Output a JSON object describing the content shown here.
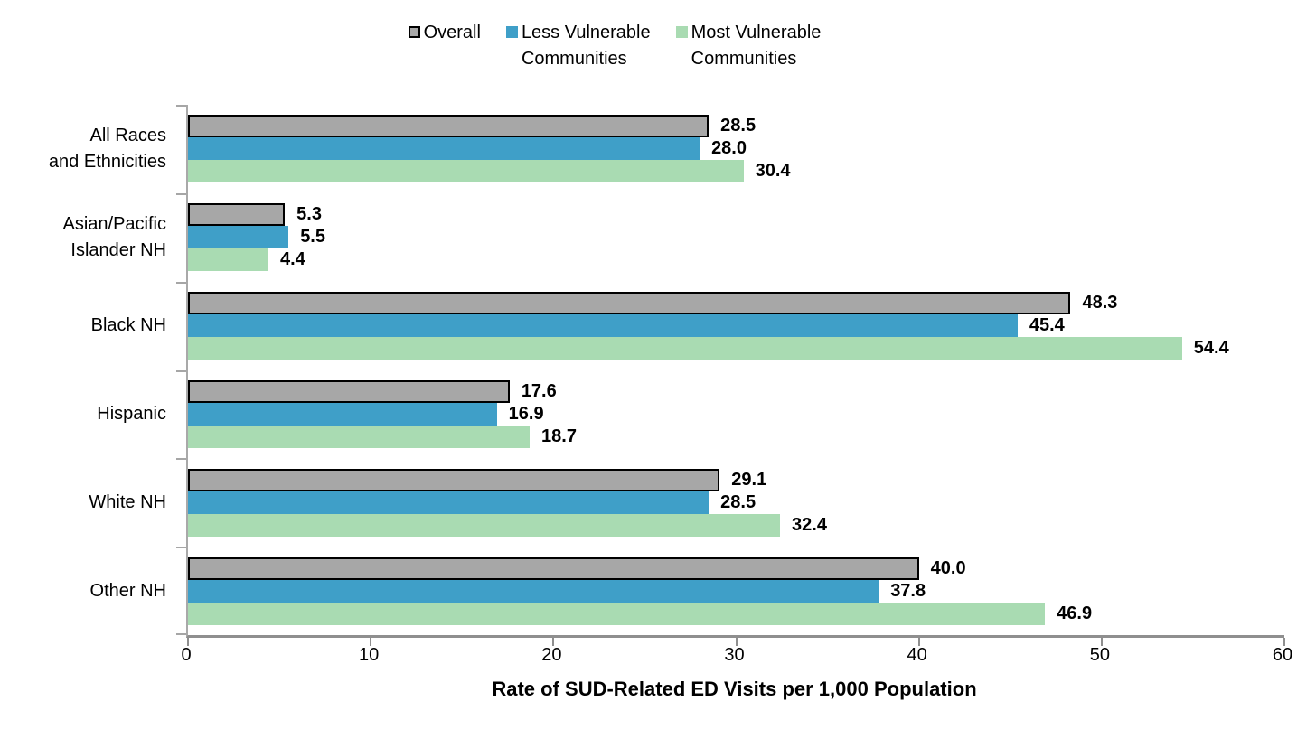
{
  "legend": {
    "items": [
      {
        "label": "Overall",
        "color": "#a7a7a7",
        "border": "#000000"
      },
      {
        "label": "Less Vulnerable\nCommunities",
        "color": "#3f9fc8",
        "border": null
      },
      {
        "label": "Most Vulnerable\nCommunities",
        "color": "#a9dbb2",
        "border": null
      }
    ]
  },
  "chart_data": {
    "type": "bar",
    "orientation": "horizontal",
    "title": "",
    "xlabel": "Rate of SUD-Related ED Visits per 1,000 Population",
    "ylabel": "",
    "xlim": [
      0,
      60
    ],
    "xticks": [
      0,
      10,
      20,
      30,
      40,
      50,
      60
    ],
    "grid": false,
    "legend_position": "top-center",
    "value_labels": "bold, one decimal, right of bar end",
    "categories": [
      "All Races\nand Ethnicities",
      "Asian/Pacific\nIslander NH",
      "Black NH",
      "Hispanic",
      "White NH",
      "Other NH"
    ],
    "series": [
      {
        "name": "Overall",
        "color": "#a7a7a7",
        "border": "#000000",
        "values": [
          28.5,
          5.3,
          48.3,
          17.6,
          29.1,
          40.0
        ]
      },
      {
        "name": "Less Vulnerable Communities",
        "color": "#3f9fc8",
        "border": null,
        "values": [
          28.0,
          5.5,
          45.4,
          16.9,
          28.5,
          37.8
        ]
      },
      {
        "name": "Most Vulnerable Communities",
        "color": "#a9dbb2",
        "border": null,
        "values": [
          30.4,
          4.4,
          54.4,
          18.7,
          32.4,
          46.9
        ]
      }
    ]
  }
}
